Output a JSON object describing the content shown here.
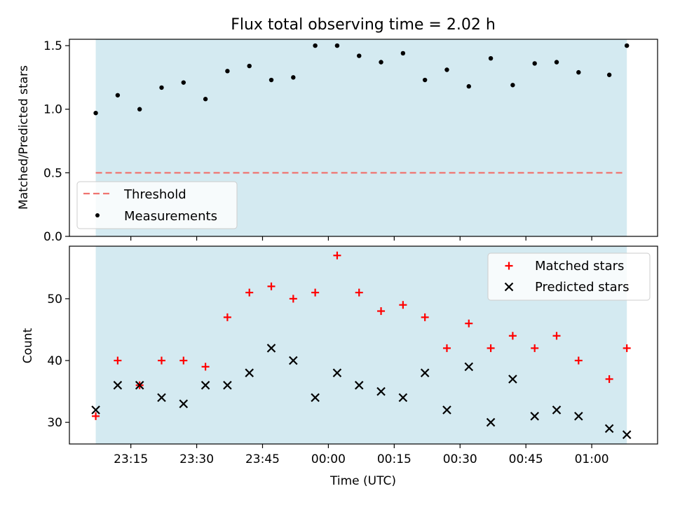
{
  "title": "Flux total observing time = 2.02 h",
  "colors": {
    "shade": "#d4eaf1",
    "threshold": "#f07470",
    "matched": "#ff0000",
    "predicted": "#000000",
    "measurements": "#000000"
  },
  "chart_data": [
    {
      "type": "scatter",
      "ylabel": "Matched/Predicted stars",
      "ylim": [
        0,
        1.55
      ],
      "yticks": [
        "0.0",
        "0.5",
        "1.0",
        "1.5"
      ],
      "shaded_span": [
        "23:07",
        "01:08"
      ],
      "legend": {
        "placement": "lower-left",
        "threshold_label": "Threshold",
        "measurements_label": "Measurements"
      },
      "threshold": {
        "name": "Threshold",
        "value": 0.5,
        "x_range": [
          "23:07",
          "01:07"
        ]
      },
      "series": [
        {
          "name": "Measurements",
          "x": [
            "23:07",
            "23:12",
            "23:17",
            "23:22",
            "23:27",
            "23:32",
            "23:37",
            "23:42",
            "23:47",
            "23:52",
            "23:57",
            "00:02",
            "00:07",
            "00:12",
            "00:17",
            "00:22",
            "00:27",
            "00:32",
            "00:37",
            "00:42",
            "00:47",
            "00:52",
            "00:57",
            "01:04",
            "01:08"
          ],
          "y": [
            0.97,
            1.11,
            1.0,
            1.17,
            1.21,
            1.08,
            1.3,
            1.34,
            1.23,
            1.25,
            1.5,
            1.5,
            1.42,
            1.37,
            1.44,
            1.23,
            1.31,
            1.18,
            1.4,
            1.19,
            1.36,
            1.37,
            1.29,
            1.27,
            1.5
          ]
        }
      ]
    },
    {
      "type": "scatter",
      "xlabel": "Time (UTC)",
      "ylabel": "Count",
      "ylim": [
        26.5,
        58.5
      ],
      "yticks": [
        "30",
        "40",
        "50"
      ],
      "xlim": [
        "23:01",
        "01:15"
      ],
      "xticks": [
        "23:15",
        "23:30",
        "23:45",
        "00:00",
        "00:15",
        "00:30",
        "00:45",
        "01:00"
      ],
      "shaded_span": [
        "23:07",
        "01:08"
      ],
      "legend": {
        "placement": "top-right",
        "matched_label": "Matched stars",
        "predicted_label": "Predicted stars"
      },
      "series": [
        {
          "name": "Matched stars",
          "x": [
            "23:07",
            "23:12",
            "23:17",
            "23:22",
            "23:27",
            "23:32",
            "23:37",
            "23:42",
            "23:47",
            "23:52",
            "23:57",
            "00:02",
            "00:07",
            "00:12",
            "00:17",
            "00:22",
            "00:27",
            "00:32",
            "00:37",
            "00:42",
            "00:47",
            "00:52",
            "00:57",
            "01:04",
            "01:08"
          ],
          "y": [
            31,
            40,
            36,
            40,
            40,
            39,
            47,
            51,
            52,
            50,
            51,
            57,
            51,
            48,
            49,
            47,
            42,
            46,
            42,
            44,
            42,
            44,
            40,
            37,
            42
          ]
        },
        {
          "name": "Predicted stars",
          "x": [
            "23:07",
            "23:12",
            "23:17",
            "23:22",
            "23:27",
            "23:32",
            "23:37",
            "23:42",
            "23:47",
            "23:52",
            "23:57",
            "00:02",
            "00:07",
            "00:12",
            "00:17",
            "00:22",
            "00:27",
            "00:32",
            "00:37",
            "00:42",
            "00:47",
            "00:52",
            "00:57",
            "01:04",
            "01:08"
          ],
          "y": [
            32,
            36,
            36,
            34,
            33,
            36,
            36,
            38,
            42,
            40,
            34,
            38,
            36,
            35,
            34,
            38,
            32,
            39,
            30,
            37,
            31,
            32,
            31,
            29,
            28
          ]
        }
      ]
    }
  ]
}
